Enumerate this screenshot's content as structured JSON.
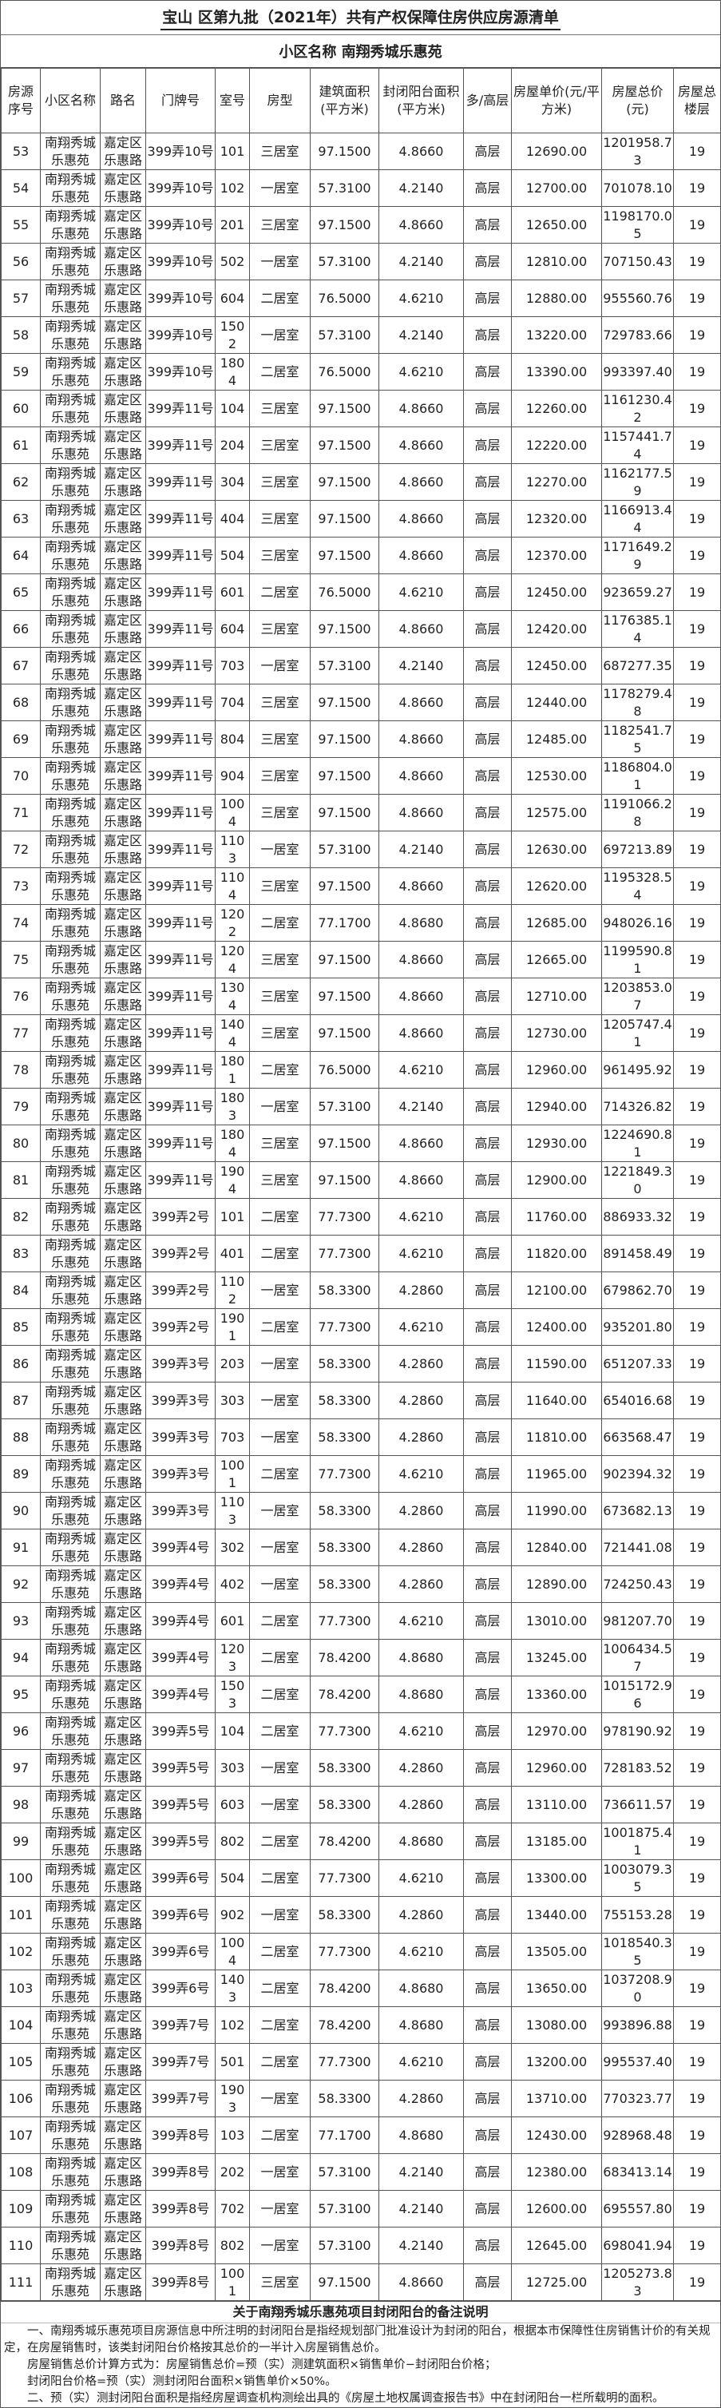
{
  "title": "宝山 区第九批（2021年）共有产权保障住房供应房源清单",
  "subtitle": "小区名称 南翔秀城乐惠苑",
  "columns": [
    "房源序号",
    "小区名称",
    "路名",
    "门牌号",
    "室号",
    "房型",
    "建筑面积(平方米)",
    "封闭阳台面积(平方米)",
    "多/高层",
    "房屋单价(元/平方米)",
    "房屋总价(元)",
    "房屋总楼层"
  ],
  "community": "南翔秀城乐惠苑",
  "road": "嘉定区乐惠路",
  "floor_type": "高层",
  "total_floors": "19",
  "rows": [
    [
      "53",
      "399弄10号",
      "101",
      "三居室",
      "97.1500",
      "4.8660",
      "12690.00",
      "1201958.73"
    ],
    [
      "54",
      "399弄10号",
      "102",
      "一居室",
      "57.3100",
      "4.2140",
      "12700.00",
      "701078.10"
    ],
    [
      "55",
      "399弄10号",
      "201",
      "三居室",
      "97.1500",
      "4.8660",
      "12650.00",
      "1198170.05"
    ],
    [
      "56",
      "399弄10号",
      "502",
      "一居室",
      "57.3100",
      "4.2140",
      "12810.00",
      "707150.43"
    ],
    [
      "57",
      "399弄10号",
      "604",
      "二居室",
      "76.5000",
      "4.6210",
      "12880.00",
      "955560.76"
    ],
    [
      "58",
      "399弄10号",
      "1502",
      "一居室",
      "57.3100",
      "4.2140",
      "13220.00",
      "729783.66"
    ],
    [
      "59",
      "399弄10号",
      "1804",
      "二居室",
      "76.5000",
      "4.6210",
      "13390.00",
      "993397.40"
    ],
    [
      "60",
      "399弄11号",
      "104",
      "三居室",
      "97.1500",
      "4.8660",
      "12260.00",
      "1161230.42"
    ],
    [
      "61",
      "399弄11号",
      "204",
      "三居室",
      "97.1500",
      "4.8660",
      "12220.00",
      "1157441.74"
    ],
    [
      "62",
      "399弄11号",
      "304",
      "三居室",
      "97.1500",
      "4.8660",
      "12270.00",
      "1162177.59"
    ],
    [
      "63",
      "399弄11号",
      "404",
      "三居室",
      "97.1500",
      "4.8660",
      "12320.00",
      "1166913.44"
    ],
    [
      "64",
      "399弄11号",
      "504",
      "三居室",
      "97.1500",
      "4.8660",
      "12370.00",
      "1171649.29"
    ],
    [
      "65",
      "399弄11号",
      "601",
      "二居室",
      "76.5000",
      "4.6210",
      "12450.00",
      "923659.27"
    ],
    [
      "66",
      "399弄11号",
      "604",
      "三居室",
      "97.1500",
      "4.8660",
      "12420.00",
      "1176385.14"
    ],
    [
      "67",
      "399弄11号",
      "703",
      "一居室",
      "57.3100",
      "4.2140",
      "12450.00",
      "687277.35"
    ],
    [
      "68",
      "399弄11号",
      "704",
      "三居室",
      "97.1500",
      "4.8660",
      "12440.00",
      "1178279.48"
    ],
    [
      "69",
      "399弄11号",
      "804",
      "三居室",
      "97.1500",
      "4.8660",
      "12485.00",
      "1182541.75"
    ],
    [
      "70",
      "399弄11号",
      "904",
      "三居室",
      "97.1500",
      "4.8660",
      "12530.00",
      "1186804.01"
    ],
    [
      "71",
      "399弄11号",
      "1004",
      "三居室",
      "97.1500",
      "4.8660",
      "12575.00",
      "1191066.28"
    ],
    [
      "72",
      "399弄11号",
      "1103",
      "一居室",
      "57.3100",
      "4.2140",
      "12630.00",
      "697213.89"
    ],
    [
      "73",
      "399弄11号",
      "1104",
      "三居室",
      "97.1500",
      "4.8660",
      "12620.00",
      "1195328.54"
    ],
    [
      "74",
      "399弄11号",
      "1202",
      "二居室",
      "77.1700",
      "4.8680",
      "12685.00",
      "948026.16"
    ],
    [
      "75",
      "399弄11号",
      "1204",
      "三居室",
      "97.1500",
      "4.8660",
      "12665.00",
      "1199590.81"
    ],
    [
      "76",
      "399弄11号",
      "1304",
      "三居室",
      "97.1500",
      "4.8660",
      "12710.00",
      "1203853.07"
    ],
    [
      "77",
      "399弄11号",
      "1404",
      "三居室",
      "97.1500",
      "4.8660",
      "12730.00",
      "1205747.41"
    ],
    [
      "78",
      "399弄11号",
      "1801",
      "二居室",
      "76.5000",
      "4.6210",
      "12960.00",
      "961495.92"
    ],
    [
      "79",
      "399弄11号",
      "1803",
      "一居室",
      "57.3100",
      "4.2140",
      "12940.00",
      "714326.82"
    ],
    [
      "80",
      "399弄11号",
      "1804",
      "三居室",
      "97.1500",
      "4.8660",
      "12930.00",
      "1224690.81"
    ],
    [
      "81",
      "399弄11号",
      "1904",
      "三居室",
      "97.1500",
      "4.8660",
      "12900.00",
      "1221849.30"
    ],
    [
      "82",
      "399弄2号",
      "101",
      "二居室",
      "77.7300",
      "4.6210",
      "11760.00",
      "886933.32"
    ],
    [
      "83",
      "399弄2号",
      "401",
      "二居室",
      "77.7300",
      "4.6210",
      "11820.00",
      "891458.49"
    ],
    [
      "84",
      "399弄2号",
      "1102",
      "一居室",
      "58.3300",
      "4.2860",
      "12100.00",
      "679862.70"
    ],
    [
      "85",
      "399弄2号",
      "1901",
      "二居室",
      "77.7300",
      "4.6210",
      "12400.00",
      "935201.80"
    ],
    [
      "86",
      "399弄3号",
      "203",
      "一居室",
      "58.3300",
      "4.2860",
      "11590.00",
      "651207.33"
    ],
    [
      "87",
      "399弄3号",
      "303",
      "一居室",
      "58.3300",
      "4.2860",
      "11640.00",
      "654016.68"
    ],
    [
      "88",
      "399弄3号",
      "703",
      "一居室",
      "58.3300",
      "4.2860",
      "11810.00",
      "663568.47"
    ],
    [
      "89",
      "399弄3号",
      "1001",
      "二居室",
      "77.7300",
      "4.6210",
      "11965.00",
      "902394.32"
    ],
    [
      "90",
      "399弄3号",
      "1103",
      "一居室",
      "58.3300",
      "4.2860",
      "11990.00",
      "673682.13"
    ],
    [
      "91",
      "399弄4号",
      "302",
      "一居室",
      "58.3300",
      "4.2860",
      "12840.00",
      "721441.08"
    ],
    [
      "92",
      "399弄4号",
      "402",
      "一居室",
      "58.3300",
      "4.2860",
      "12890.00",
      "724250.43"
    ],
    [
      "93",
      "399弄4号",
      "601",
      "二居室",
      "77.7300",
      "4.6210",
      "13010.00",
      "981207.70"
    ],
    [
      "94",
      "399弄4号",
      "1203",
      "二居室",
      "78.4200",
      "4.8680",
      "13245.00",
      "1006434.57"
    ],
    [
      "95",
      "399弄4号",
      "1503",
      "二居室",
      "78.4200",
      "4.8680",
      "13360.00",
      "1015172.96"
    ],
    [
      "96",
      "399弄5号",
      "104",
      "二居室",
      "77.7300",
      "4.6210",
      "12970.00",
      "978190.92"
    ],
    [
      "97",
      "399弄5号",
      "303",
      "一居室",
      "58.3300",
      "4.2860",
      "12960.00",
      "728183.52"
    ],
    [
      "98",
      "399弄5号",
      "603",
      "一居室",
      "58.3300",
      "4.2860",
      "13110.00",
      "736611.57"
    ],
    [
      "99",
      "399弄5号",
      "802",
      "二居室",
      "78.4200",
      "4.8680",
      "13185.00",
      "1001875.41"
    ],
    [
      "100",
      "399弄6号",
      "504",
      "二居室",
      "77.7300",
      "4.6210",
      "13300.00",
      "1003079.35"
    ],
    [
      "101",
      "399弄6号",
      "902",
      "一居室",
      "58.3300",
      "4.2860",
      "13440.00",
      "755153.28"
    ],
    [
      "102",
      "399弄6号",
      "1004",
      "二居室",
      "77.7300",
      "4.6210",
      "13505.00",
      "1018540.35"
    ],
    [
      "103",
      "399弄6号",
      "1403",
      "二居室",
      "78.4200",
      "4.8680",
      "13650.00",
      "1037208.90"
    ],
    [
      "104",
      "399弄7号",
      "102",
      "二居室",
      "78.4200",
      "4.8680",
      "13080.00",
      "993896.88"
    ],
    [
      "105",
      "399弄7号",
      "501",
      "二居室",
      "77.7300",
      "4.6210",
      "13200.00",
      "995537.40"
    ],
    [
      "106",
      "399弄7号",
      "1903",
      "一居室",
      "58.3300",
      "4.2860",
      "13710.00",
      "770323.77"
    ],
    [
      "107",
      "399弄8号",
      "103",
      "二居室",
      "77.1700",
      "4.8680",
      "12430.00",
      "928968.48"
    ],
    [
      "108",
      "399弄8号",
      "202",
      "一居室",
      "57.3100",
      "4.2140",
      "12380.00",
      "683413.14"
    ],
    [
      "109",
      "399弄8号",
      "702",
      "一居室",
      "57.3100",
      "4.2140",
      "12600.00",
      "695557.80"
    ],
    [
      "110",
      "399弄8号",
      "802",
      "一居室",
      "57.3100",
      "4.2140",
      "12645.00",
      "698041.94"
    ],
    [
      "111",
      "399弄8号",
      "1001",
      "三居室",
      "97.1500",
      "4.8660",
      "12725.00",
      "1205273.83"
    ]
  ],
  "notes": {
    "title": "关于南翔秀城乐惠苑项目封闭阳台的备注说明",
    "p1": "一、南翔秀城乐惠苑项目房源信息中所注明的封闭阳台是指经规划部门批准设计为封闭的阳台，根据本市保障性住房销售计价的有关规定，在房屋销售时，该类封闭阳台价格按其总价的一半计入房屋销售总价。",
    "p2": "房屋销售总价计算方式为：房屋销售总价=预（实）测建筑面积×销售单价−封闭阳台价格；",
    "p3": "封闭阳台价格=预（实）测封闭阳台面积×销售单价×50%。",
    "p4": "二、预（实）测封闭阳台面积是指经房屋调查机构测绘出具的《房屋土地权属调查报告书》中在封闭阳台一栏所载明的面积。"
  }
}
